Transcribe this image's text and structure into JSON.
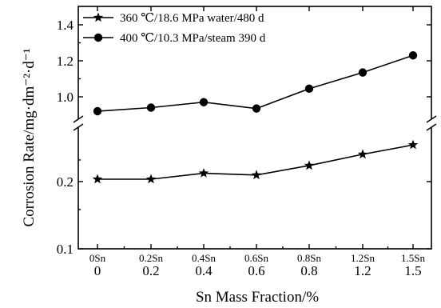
{
  "chart_data": {
    "type": "line",
    "title": "",
    "xlabel": "Sn Mass Fraction/%",
    "ylabel": "Corrosion Rate/mg·dm⁻²·d⁻¹",
    "x_tick_labels": [
      "0",
      "0.2",
      "0.4",
      "0.6",
      "0.8",
      "1.2",
      "1.5"
    ],
    "category_labels": [
      "0Sn",
      "0.2Sn",
      "0.4Sn",
      "0.6Sn",
      "0.8Sn",
      "1.2Sn",
      "1.5Sn"
    ],
    "y_axis": {
      "broken": true,
      "lower_segment": {
        "scale": "log",
        "range": [
          0.1,
          0.3
        ],
        "tick_labels": [
          "0.1",
          "0.2"
        ]
      },
      "upper_segment": {
        "scale": "linear",
        "range": [
          0.82,
          1.5
        ],
        "tick_labels": [
          "1.0",
          "1.2",
          "1.4"
        ]
      }
    },
    "series": [
      {
        "name": "360 ℃/18.6 MPa water/480 d",
        "marker": "star",
        "values": [
          0.205,
          0.205,
          0.218,
          0.214,
          0.236,
          0.265,
          0.292
        ]
      },
      {
        "name": "400 ℃/10.3 MPa/steam 390 d",
        "marker": "circle",
        "values": [
          0.92,
          0.94,
          0.97,
          0.935,
          1.045,
          1.135,
          1.23
        ]
      }
    ],
    "legend_position": "top-left",
    "grid": false
  }
}
